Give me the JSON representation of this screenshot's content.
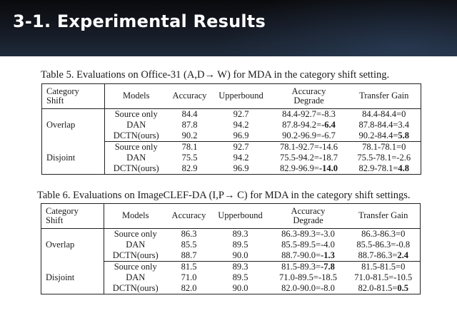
{
  "slide": {
    "title": "3-1. Experimental Results"
  },
  "table5": {
    "caption": "Table 5.  Evaluations on Office-31 (A,D→ W) for MDA in the category shift setting.",
    "headers": {
      "category_shift_line1": "Category",
      "category_shift_line2": "Shift",
      "models": "Models",
      "accuracy": "Accuracy",
      "upperbound": "Upperbound",
      "degrade_line1": "Accuracy",
      "degrade_line2": "Degrade",
      "transfer_gain": "Transfer Gain"
    },
    "groups": [
      {
        "shift": "Overlap",
        "rows": [
          {
            "model": "Source only",
            "accuracy": "84.4",
            "upperbound": "92.7",
            "degrade_expr": "84.4-92.7=-8.3",
            "degrade_val": "",
            "gain_expr": "84.4-84.4=0",
            "gain_val": ""
          },
          {
            "model": "DAN",
            "accuracy": "87.8",
            "upperbound": "94.2",
            "degrade_expr": "87.8-94.2=",
            "degrade_val": "-6.4",
            "gain_expr": "87.8-84.4=3.4",
            "gain_val": ""
          },
          {
            "model": "DCTN(ours)",
            "accuracy": "90.2",
            "upperbound": "96.9",
            "degrade_expr": "90.2-96.9=-6.7",
            "degrade_val": "",
            "gain_expr": "90.2-84.4=",
            "gain_val": "5.8"
          }
        ]
      },
      {
        "shift": "Disjoint",
        "rows": [
          {
            "model": "Source only",
            "accuracy": "78.1",
            "upperbound": "92.7",
            "degrade_expr": "78.1-92.7=-14.6",
            "degrade_val": "",
            "gain_expr": "78.1-78.1=0",
            "gain_val": ""
          },
          {
            "model": "DAN",
            "accuracy": "75.5",
            "upperbound": "94.2",
            "degrade_expr": "75.5-94.2=-18.7",
            "degrade_val": "",
            "gain_expr": "75.5-78.1=-2.6",
            "gain_val": ""
          },
          {
            "model": "DCTN(ours)",
            "accuracy": "82.9",
            "upperbound": "96.9",
            "degrade_expr": "82.9-96.9=",
            "degrade_val": "-14.0",
            "gain_expr": "82.9-78.1=",
            "gain_val": "4.8"
          }
        ]
      }
    ]
  },
  "table6": {
    "caption": "Table 6.  Evaluations on ImageCLEF-DA (I,P→ C) for MDA in the category shift settings.",
    "headers": {
      "category_shift_line1": "Category",
      "category_shift_line2": "Shift",
      "models": "Models",
      "accuracy": "Accuracy",
      "upperbound": "Upperbound",
      "degrade_line1": "Accuracy",
      "degrade_line2": "Degrade",
      "transfer_gain": "Transfer Gain"
    },
    "groups": [
      {
        "shift": "Overlap",
        "rows": [
          {
            "model": "Source only",
            "accuracy": "86.3",
            "upperbound": "89.3",
            "degrade_expr": "86.3-89.3=-3.0",
            "degrade_val": "",
            "gain_expr": "86.3-86.3=0",
            "gain_val": ""
          },
          {
            "model": "DAN",
            "accuracy": "85.5",
            "upperbound": "89.5",
            "degrade_expr": "85.5-89.5=-4.0",
            "degrade_val": "",
            "gain_expr": "85.5-86.3=-0.8",
            "gain_val": ""
          },
          {
            "model": "DCTN(ours)",
            "accuracy": "88.7",
            "upperbound": "90.0",
            "degrade_expr": "88.7-90.0=",
            "degrade_val": "-1.3",
            "gain_expr": "88.7-86.3=",
            "gain_val": "2.4"
          }
        ]
      },
      {
        "shift": "Disjoint",
        "rows": [
          {
            "model": "Source only",
            "accuracy": "81.5",
            "upperbound": "89.3",
            "degrade_expr": "81.5-89.3=",
            "degrade_val": "-7.8",
            "gain_expr": "81.5-81.5=0",
            "gain_val": ""
          },
          {
            "model": "DAN",
            "accuracy": "71.0",
            "upperbound": "89.5",
            "degrade_expr": "71.0-89.5=-18.5",
            "degrade_val": "",
            "gain_expr": "71.0-81.5=-10.5",
            "gain_val": ""
          },
          {
            "model": "DCTN(ours)",
            "accuracy": "82.0",
            "upperbound": "90.0",
            "degrade_expr": "82.0-90.0=-8.0",
            "degrade_val": "",
            "gain_expr": "82.0-81.5=",
            "gain_val": "0.5"
          }
        ]
      }
    ]
  }
}
